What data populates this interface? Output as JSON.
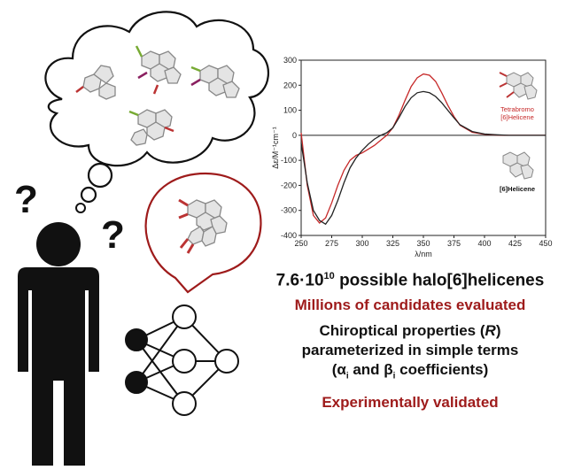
{
  "summary": {
    "line1_pre": "7.6·10",
    "line1_exp": "10",
    "line1_post": " possible halo[6]helicenes",
    "line2": "Millions of candidates evaluated",
    "line3a_pre": "Chiroptical properties (",
    "line3a_var": "R",
    "line3a_post": ")",
    "line3b": "parameterized in simple terms",
    "line3c_pre": "(α",
    "line3c_sub1": "i",
    "line3c_mid": " and β",
    "line3c_sub2": "i",
    "line3c_post": " coefficients)",
    "line4": "Experimentally validated"
  },
  "marks": {
    "question": "?"
  },
  "colors": {
    "accent": "#9e1b1b",
    "ink": "#111111",
    "series_tetrabromo": "#c62828",
    "series_helicene": "#222222"
  },
  "chart_data": {
    "type": "line",
    "title": "",
    "xlabel": "λ/nm",
    "ylabel": "Δε/M⁻¹cm⁻¹",
    "xlim": [
      250,
      450
    ],
    "ylim": [
      -400,
      300
    ],
    "xticks": [
      250,
      275,
      300,
      325,
      350,
      375,
      400,
      425,
      450
    ],
    "yticks": [
      300,
      200,
      100,
      0,
      -100,
      -200,
      -300,
      -400
    ],
    "grid": false,
    "zero_line": true,
    "series": [
      {
        "name": "Tetrabromo [6]Helicene",
        "name_line1": "Tetrabromo",
        "name_line2": "[6]Helicene",
        "color": "#c62828",
        "x": [
          250,
          255,
          260,
          265,
          270,
          275,
          280,
          285,
          290,
          295,
          300,
          305,
          310,
          315,
          320,
          325,
          330,
          335,
          340,
          345,
          350,
          355,
          360,
          365,
          370,
          375,
          380,
          390,
          400,
          410,
          420,
          430,
          440,
          450
        ],
        "y": [
          10,
          -200,
          -320,
          -350,
          -330,
          -270,
          -200,
          -140,
          -100,
          -80,
          -70,
          -55,
          -40,
          -20,
          0,
          30,
          80,
          140,
          195,
          230,
          245,
          240,
          215,
          170,
          120,
          75,
          40,
          12,
          4,
          1,
          0,
          0,
          0,
          0
        ]
      },
      {
        "name": "[6]Helicene",
        "name_line1": "[6]Helicene",
        "color": "#222222",
        "x": [
          250,
          255,
          260,
          265,
          270,
          275,
          280,
          285,
          290,
          295,
          300,
          305,
          310,
          315,
          320,
          325,
          330,
          335,
          340,
          345,
          350,
          355,
          360,
          365,
          370,
          375,
          380,
          390,
          400,
          410,
          420,
          430,
          440,
          450
        ],
        "y": [
          -30,
          -190,
          -300,
          -340,
          -355,
          -320,
          -260,
          -190,
          -130,
          -90,
          -60,
          -35,
          -15,
          0,
          10,
          30,
          70,
          115,
          150,
          170,
          175,
          170,
          155,
          130,
          100,
          70,
          42,
          15,
          5,
          2,
          0,
          0,
          0,
          0
        ]
      }
    ]
  }
}
